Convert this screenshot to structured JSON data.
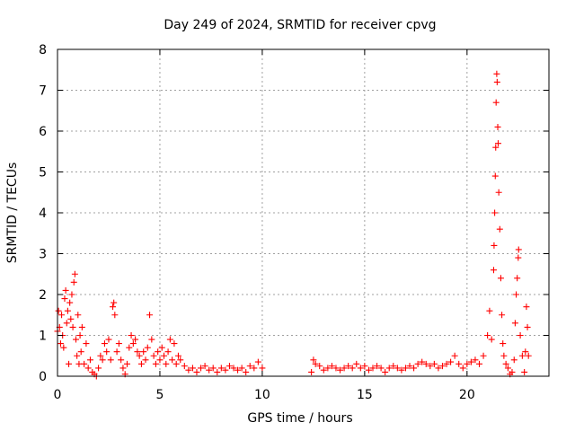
{
  "chart_data": {
    "type": "scatter",
    "title": "Day 249 of 2024, SRMTID for receiver cpvg",
    "xlabel": "GPS time / hours",
    "ylabel": "SRMTID / TECUs",
    "xlim": [
      0,
      24
    ],
    "ylim": [
      0,
      8
    ],
    "x_ticks": [
      0,
      5,
      10,
      15,
      20
    ],
    "x_tick_labels": [
      "0",
      "5",
      "10",
      "15",
      "20"
    ],
    "y_ticks": [
      0,
      1,
      2,
      3,
      4,
      5,
      6,
      7,
      8
    ],
    "y_tick_labels": [
      "0",
      "1",
      "2",
      "3",
      "4",
      "5",
      "6",
      "7",
      "8"
    ],
    "grid": true,
    "marker": "+",
    "series": [
      {
        "name": "SRMTID",
        "color": "#ff0000",
        "points": [
          [
            0.0,
            1.1
          ],
          [
            0.05,
            1.6
          ],
          [
            0.1,
            1.2
          ],
          [
            0.15,
            0.8
          ],
          [
            0.2,
            1.5
          ],
          [
            0.25,
            1.0
          ],
          [
            0.3,
            0.7
          ],
          [
            0.35,
            1.9
          ],
          [
            0.4,
            2.1
          ],
          [
            0.45,
            1.3
          ],
          [
            0.5,
            1.6
          ],
          [
            0.55,
            0.3
          ],
          [
            0.6,
            1.8
          ],
          [
            0.65,
            1.4
          ],
          [
            0.7,
            2.0
          ],
          [
            0.75,
            1.2
          ],
          [
            0.8,
            2.3
          ],
          [
            0.85,
            2.5
          ],
          [
            0.9,
            0.9
          ],
          [
            0.95,
            0.5
          ],
          [
            1.0,
            1.5
          ],
          [
            1.05,
            0.3
          ],
          [
            1.1,
            1.0
          ],
          [
            1.15,
            0.6
          ],
          [
            1.2,
            1.2
          ],
          [
            1.3,
            0.3
          ],
          [
            1.4,
            0.8
          ],
          [
            1.5,
            0.2
          ],
          [
            1.6,
            0.4
          ],
          [
            1.7,
            0.1
          ],
          [
            1.8,
            0.05
          ],
          [
            1.9,
            0.0
          ],
          [
            2.0,
            0.2
          ],
          [
            2.1,
            0.5
          ],
          [
            2.2,
            0.4
          ],
          [
            2.3,
            0.8
          ],
          [
            2.4,
            0.6
          ],
          [
            2.5,
            0.9
          ],
          [
            2.6,
            0.4
          ],
          [
            2.7,
            1.7
          ],
          [
            2.75,
            1.8
          ],
          [
            2.8,
            1.5
          ],
          [
            2.9,
            0.6
          ],
          [
            3.0,
            0.8
          ],
          [
            3.1,
            0.4
          ],
          [
            3.2,
            0.2
          ],
          [
            3.3,
            0.05
          ],
          [
            3.4,
            0.3
          ],
          [
            3.5,
            0.7
          ],
          [
            3.6,
            1.0
          ],
          [
            3.7,
            0.8
          ],
          [
            3.8,
            0.9
          ],
          [
            3.9,
            0.6
          ],
          [
            4.0,
            0.5
          ],
          [
            4.1,
            0.3
          ],
          [
            4.2,
            0.6
          ],
          [
            4.3,
            0.4
          ],
          [
            4.4,
            0.7
          ],
          [
            4.5,
            1.5
          ],
          [
            4.6,
            0.9
          ],
          [
            4.7,
            0.5
          ],
          [
            4.8,
            0.3
          ],
          [
            4.9,
            0.6
          ],
          [
            5.0,
            0.4
          ],
          [
            5.1,
            0.7
          ],
          [
            5.2,
            0.5
          ],
          [
            5.3,
            0.3
          ],
          [
            5.4,
            0.6
          ],
          [
            5.5,
            0.9
          ],
          [
            5.6,
            0.4
          ],
          [
            5.7,
            0.8
          ],
          [
            5.8,
            0.3
          ],
          [
            5.9,
            0.5
          ],
          [
            6.0,
            0.4
          ],
          [
            6.2,
            0.25
          ],
          [
            6.4,
            0.15
          ],
          [
            6.6,
            0.2
          ],
          [
            6.8,
            0.1
          ],
          [
            7.0,
            0.2
          ],
          [
            7.2,
            0.25
          ],
          [
            7.4,
            0.15
          ],
          [
            7.6,
            0.2
          ],
          [
            7.8,
            0.1
          ],
          [
            8.0,
            0.2
          ],
          [
            8.2,
            0.15
          ],
          [
            8.4,
            0.25
          ],
          [
            8.6,
            0.2
          ],
          [
            8.8,
            0.15
          ],
          [
            9.0,
            0.2
          ],
          [
            9.2,
            0.1
          ],
          [
            9.4,
            0.25
          ],
          [
            9.6,
            0.2
          ],
          [
            9.8,
            0.35
          ],
          [
            10.0,
            0.2
          ],
          [
            12.4,
            0.1
          ],
          [
            12.5,
            0.4
          ],
          [
            12.6,
            0.3
          ],
          [
            12.8,
            0.25
          ],
          [
            13.0,
            0.15
          ],
          [
            13.2,
            0.2
          ],
          [
            13.4,
            0.25
          ],
          [
            13.6,
            0.2
          ],
          [
            13.8,
            0.15
          ],
          [
            14.0,
            0.2
          ],
          [
            14.2,
            0.25
          ],
          [
            14.4,
            0.2
          ],
          [
            14.6,
            0.3
          ],
          [
            14.8,
            0.2
          ],
          [
            15.0,
            0.25
          ],
          [
            15.2,
            0.15
          ],
          [
            15.4,
            0.2
          ],
          [
            15.6,
            0.25
          ],
          [
            15.8,
            0.2
          ],
          [
            16.0,
            0.1
          ],
          [
            16.2,
            0.2
          ],
          [
            16.4,
            0.25
          ],
          [
            16.6,
            0.2
          ],
          [
            16.8,
            0.15
          ],
          [
            17.0,
            0.2
          ],
          [
            17.2,
            0.25
          ],
          [
            17.4,
            0.2
          ],
          [
            17.6,
            0.3
          ],
          [
            17.8,
            0.35
          ],
          [
            18.0,
            0.3
          ],
          [
            18.2,
            0.25
          ],
          [
            18.4,
            0.3
          ],
          [
            18.6,
            0.2
          ],
          [
            18.8,
            0.25
          ],
          [
            19.0,
            0.3
          ],
          [
            19.2,
            0.35
          ],
          [
            19.4,
            0.5
          ],
          [
            19.6,
            0.3
          ],
          [
            19.8,
            0.2
          ],
          [
            20.0,
            0.3
          ],
          [
            20.2,
            0.35
          ],
          [
            20.4,
            0.4
          ],
          [
            20.6,
            0.3
          ],
          [
            20.8,
            0.5
          ],
          [
            21.0,
            1.0
          ],
          [
            21.1,
            1.6
          ],
          [
            21.2,
            0.9
          ],
          [
            21.3,
            2.6
          ],
          [
            21.32,
            3.2
          ],
          [
            21.35,
            4.0
          ],
          [
            21.38,
            4.9
          ],
          [
            21.4,
            5.6
          ],
          [
            21.42,
            6.7
          ],
          [
            21.45,
            7.4
          ],
          [
            21.47,
            7.2
          ],
          [
            21.5,
            6.1
          ],
          [
            21.52,
            5.7
          ],
          [
            21.55,
            4.5
          ],
          [
            21.6,
            3.6
          ],
          [
            21.65,
            2.4
          ],
          [
            21.7,
            1.5
          ],
          [
            21.75,
            0.8
          ],
          [
            21.8,
            0.5
          ],
          [
            21.9,
            0.3
          ],
          [
            22.0,
            0.2
          ],
          [
            22.1,
            0.05
          ],
          [
            22.2,
            0.1
          ],
          [
            22.3,
            0.4
          ],
          [
            22.35,
            1.3
          ],
          [
            22.4,
            2.0
          ],
          [
            22.45,
            2.4
          ],
          [
            22.5,
            2.9
          ],
          [
            22.52,
            3.1
          ],
          [
            22.6,
            1.0
          ],
          [
            22.7,
            0.5
          ],
          [
            22.8,
            0.1
          ],
          [
            22.85,
            0.6
          ],
          [
            22.9,
            1.7
          ],
          [
            22.95,
            1.2
          ],
          [
            23.0,
            0.5
          ]
        ]
      }
    ]
  }
}
